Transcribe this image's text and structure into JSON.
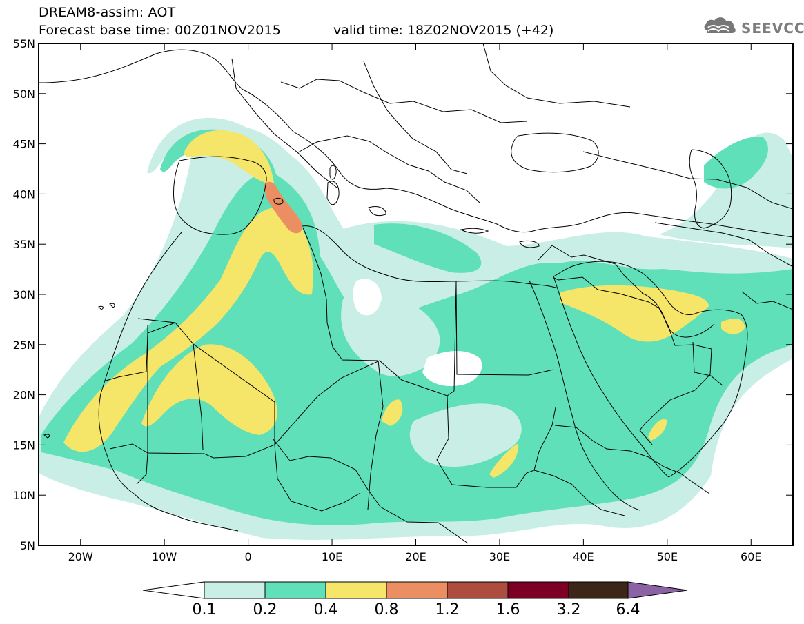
{
  "header": {
    "line1": "DREAM8-assim: AOT",
    "line2_left": "Forecast base time: 00Z01NOV2015",
    "line2_right": "valid time: 18Z02NOV2015 (+42)"
  },
  "logo": {
    "text": "SEEVCCC",
    "icon": "cloud-icon",
    "color": "#7d7d7d"
  },
  "map": {
    "lat_labels": [
      "55N",
      "50N",
      "45N",
      "40N",
      "35N",
      "30N",
      "25N",
      "20N",
      "15N",
      "10N",
      "5N"
    ],
    "lon_labels": [
      "20W",
      "10W",
      "0",
      "10E",
      "20E",
      "30E",
      "40E",
      "50E",
      "60E"
    ],
    "lon_range": [
      -25,
      65
    ],
    "lat_range": [
      5,
      55
    ]
  },
  "legend": {
    "values": [
      "0.1",
      "0.2",
      "0.4",
      "0.8",
      "1.2",
      "1.6",
      "3.2",
      "6.4"
    ],
    "colors": [
      "#ffffff",
      "#c8eee6",
      "#60e0b8",
      "#f5e66a",
      "#eb8f62",
      "#ad4c3f",
      "#7c0026",
      "#3b2618",
      "#8b62a3"
    ]
  }
}
